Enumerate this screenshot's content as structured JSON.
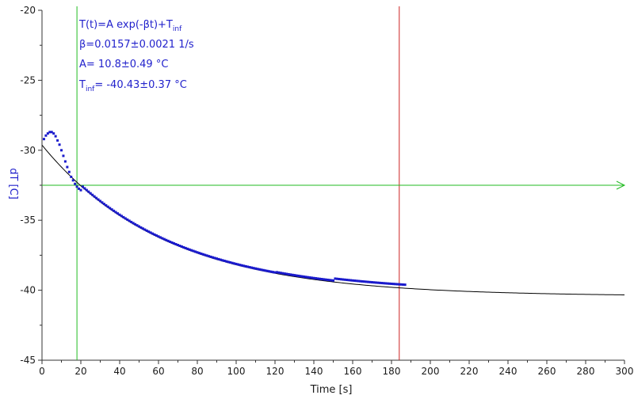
{
  "chart_data": {
    "type": "scatter",
    "xlabel": "Time [s]",
    "ylabel": "dT [C]",
    "xlim": [
      0,
      300
    ],
    "ylim": [
      -45,
      -20
    ],
    "xticks": [
      0,
      20,
      40,
      60,
      80,
      100,
      120,
      140,
      160,
      180,
      200,
      220,
      240,
      260,
      280,
      300
    ],
    "yticks": [
      -45,
      -40,
      -35,
      -30,
      -25,
      -20
    ],
    "grid": false,
    "annotations": {
      "formula_prefix": "T(t)=A exp(-βt)+T",
      "formula_sub": "inf",
      "beta": "β=0.0157±0.0021 1/s",
      "A": "A= 10.8±0.49 °C",
      "tinf_prefix": "T",
      "tinf_sub": "inf",
      "tinf_value": "= -40.43±0.37 °C"
    },
    "fit": {
      "A": 10.8,
      "beta": 0.0157,
      "T_inf": -40.43,
      "x_range": [
        0,
        300
      ]
    },
    "measured": {
      "peak_points": [
        {
          "x": 1,
          "y": -29.2
        },
        {
          "x": 2,
          "y": -28.95
        },
        {
          "x": 3,
          "y": -28.8
        },
        {
          "x": 4,
          "y": -28.7
        },
        {
          "x": 5,
          "y": -28.7
        },
        {
          "x": 6,
          "y": -28.8
        },
        {
          "x": 7,
          "y": -29.0
        },
        {
          "x": 8,
          "y": -29.3
        },
        {
          "x": 9,
          "y": -29.6
        },
        {
          "x": 10,
          "y": -30.0
        },
        {
          "x": 11,
          "y": -30.4
        },
        {
          "x": 12,
          "y": -30.8
        },
        {
          "x": 13,
          "y": -31.2
        },
        {
          "x": 14,
          "y": -31.55
        },
        {
          "x": 15,
          "y": -31.9
        },
        {
          "x": 16,
          "y": -32.15
        },
        {
          "x": 17,
          "y": -32.4
        },
        {
          "x": 18,
          "y": -32.6
        },
        {
          "x": 19,
          "y": -32.75
        },
        {
          "x": 20,
          "y": -32.85
        }
      ],
      "tail_start": 21,
      "tail_end": 187,
      "tail_step": 1,
      "tail_offset": 0.35
    },
    "cursors": {
      "vertical_green_x": 18,
      "vertical_red_x": 184,
      "horizontal_green_y": -32.5
    },
    "colors": {
      "data": "#1a1acc",
      "fit": "#000000",
      "cursor_green": "#22bb22",
      "cursor_red": "#cc2222",
      "axis": "#333333",
      "label": "#2222cc"
    }
  }
}
